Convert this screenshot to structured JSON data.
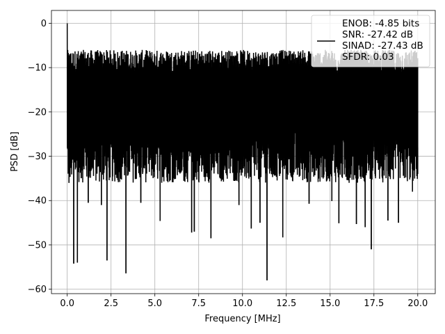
{
  "chart_data": {
    "type": "line",
    "title": "",
    "xlabel": "Frequency [MHz]",
    "ylabel": "PSD [dB]",
    "xlim": [
      -0.9,
      21.0
    ],
    "ylim": [
      -61.0,
      2.9
    ],
    "xticks": [
      0.0,
      2.5,
      5.0,
      7.5,
      10.0,
      12.5,
      15.0,
      17.5,
      20.0
    ],
    "xtick_labels": [
      "0.0",
      "2.5",
      "5.0",
      "7.5",
      "10.0",
      "12.5",
      "15.0",
      "17.5",
      "20.0"
    ],
    "yticks": [
      0,
      -10,
      -20,
      -30,
      -40,
      -50,
      -60
    ],
    "ytick_labels": [
      "0",
      "−10",
      "−20",
      "−30",
      "−40",
      "−50",
      "−60"
    ],
    "grid": true,
    "legend_position": "upper-right",
    "series": [
      {
        "legend_text": [
          "ENOB: -4.85 bits",
          "SNR: -27.42 dB",
          "SINAD: -27.43 dB",
          "SFDR: 0.03"
        ],
        "color": "#000000",
        "x_range": [
          0.0,
          20.0
        ],
        "noise_band": {
          "top_range": [
            -12.0,
            -6.0
          ],
          "bottom_range": [
            -36.0,
            -24.0
          ]
        },
        "dc_peak": {
          "x": 0.0,
          "y": 0.0
        },
        "notable_points": [
          {
            "x": 0.05,
            "y": -22.0
          },
          {
            "x": 0.1,
            "y": -36.0
          },
          {
            "x": 0.37,
            "y": -54.2
          },
          {
            "x": 0.58,
            "y": -54.0
          },
          {
            "x": 1.2,
            "y": -40.5
          },
          {
            "x": 1.95,
            "y": -41.0
          },
          {
            "x": 2.27,
            "y": -53.5
          },
          {
            "x": 3.35,
            "y": -56.4
          },
          {
            "x": 4.2,
            "y": -40.5
          },
          {
            "x": 5.3,
            "y": -44.6
          },
          {
            "x": 7.1,
            "y": -47.2
          },
          {
            "x": 7.25,
            "y": -47.0
          },
          {
            "x": 8.2,
            "y": -48.5
          },
          {
            "x": 9.8,
            "y": -41.0
          },
          {
            "x": 10.5,
            "y": -46.3
          },
          {
            "x": 11.0,
            "y": -45.0
          },
          {
            "x": 11.4,
            "y": -58.0
          },
          {
            "x": 12.3,
            "y": -48.3
          },
          {
            "x": 13.8,
            "y": -40.7
          },
          {
            "x": 15.1,
            "y": -40.1
          },
          {
            "x": 15.5,
            "y": -45.1
          },
          {
            "x": 16.5,
            "y": -45.3
          },
          {
            "x": 17.0,
            "y": -46.0
          },
          {
            "x": 17.35,
            "y": -51.0
          },
          {
            "x": 18.3,
            "y": -44.5
          },
          {
            "x": 18.9,
            "y": -45.0
          },
          {
            "x": 19.7,
            "y": -38.0
          },
          {
            "x": 20.0,
            "y": -34.0
          }
        ]
      }
    ]
  }
}
